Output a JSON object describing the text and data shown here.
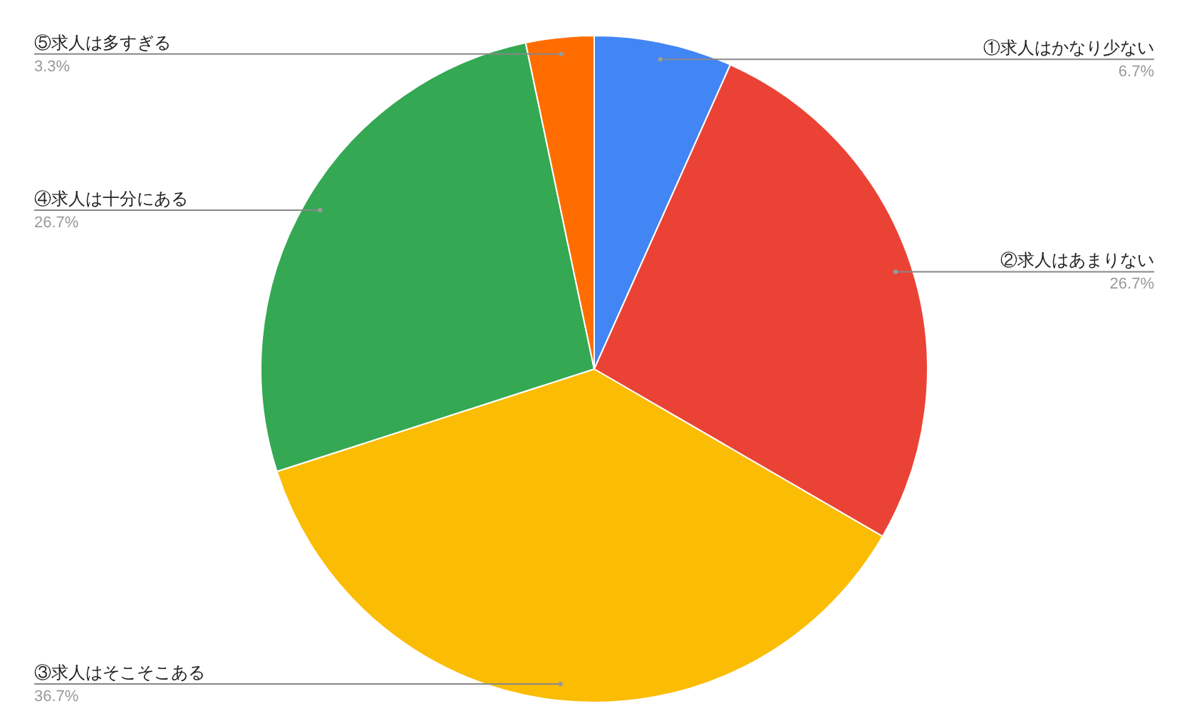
{
  "chart_data": {
    "type": "pie",
    "categories": [
      "①求人はかなり少ない",
      "②求人はあまりない",
      "③求人はそこそこある",
      "④求人は十分にある",
      "⑤求人は多すぎる"
    ],
    "values": [
      6.7,
      26.7,
      36.7,
      26.7,
      3.3
    ],
    "value_labels": [
      "6.7%",
      "26.7%",
      "36.7%",
      "26.7%",
      "3.3%"
    ],
    "colors": [
      "#4285f4",
      "#ea4335",
      "#fbbc04",
      "#34a853",
      "#ff6d01"
    ]
  }
}
